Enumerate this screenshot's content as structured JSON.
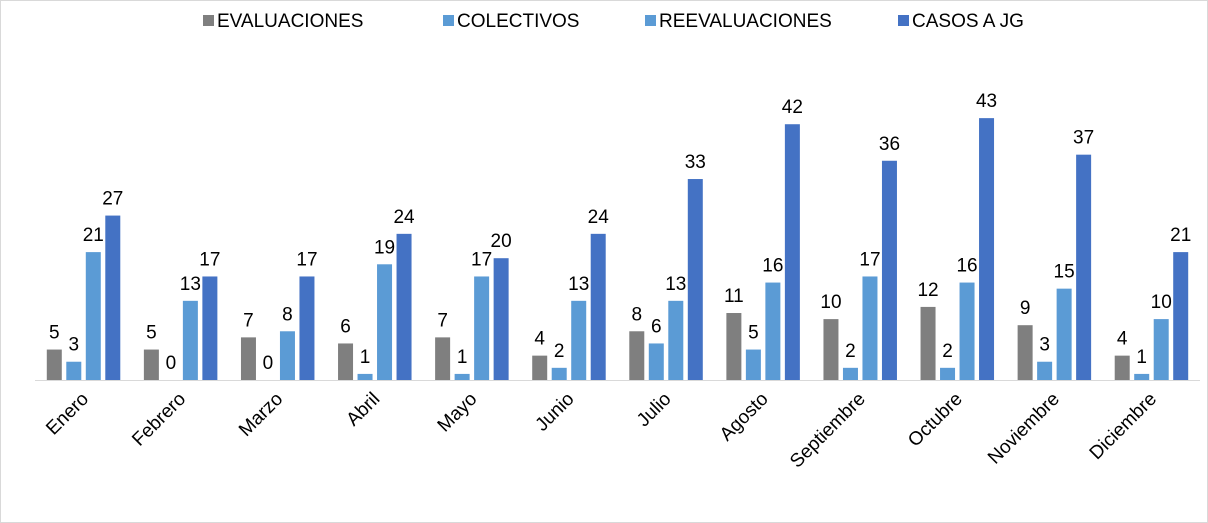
{
  "chart_data": {
    "type": "bar",
    "categories": [
      "Enero",
      "Febrero",
      "Marzo",
      "Abril",
      "Mayo",
      "Junio",
      "Julio",
      "Agosto",
      "Septiembre",
      "Octubre",
      "Noviembre",
      "Diciembre"
    ],
    "series": [
      {
        "name": "EVALUACIONES",
        "color": "#7f7f7f",
        "values": [
          5,
          5,
          7,
          6,
          7,
          4,
          8,
          11,
          10,
          12,
          9,
          4
        ]
      },
      {
        "name": "COLECTIVOS",
        "color": "#5b9bd5",
        "values": [
          3,
          0,
          0,
          1,
          1,
          2,
          6,
          5,
          2,
          2,
          3,
          1
        ]
      },
      {
        "name": "REEVALUACIONES",
        "color": "#5b9bd5",
        "values": [
          21,
          13,
          8,
          19,
          17,
          13,
          13,
          16,
          17,
          16,
          15,
          10
        ]
      },
      {
        "name": "CASOS A JG",
        "color": "#4472c4",
        "values": [
          27,
          17,
          17,
          24,
          20,
          24,
          33,
          42,
          36,
          43,
          37,
          21
        ]
      }
    ],
    "legend": "top"
  }
}
